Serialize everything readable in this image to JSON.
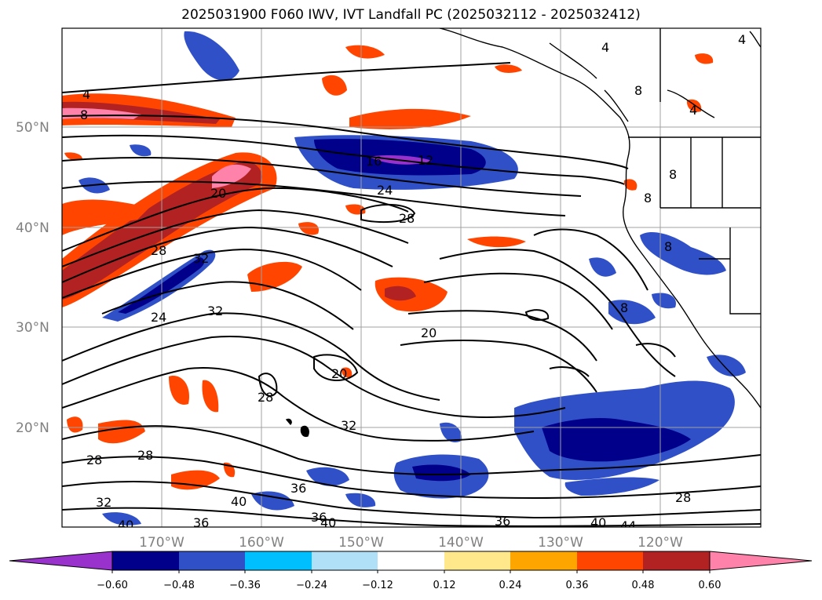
{
  "title": "2025031900 F060 IWV, IVT Landfall PC (2025032112 - 2025032412)",
  "lat_labels": [
    "50°N",
    "40°N",
    "30°N",
    "20°N"
  ],
  "lon_labels": [
    "170°W",
    "160°W",
    "150°W",
    "140°W",
    "130°W",
    "120°W"
  ],
  "contour_labels": [
    "4",
    "8",
    "16",
    "12",
    "20",
    "24",
    "28",
    "32",
    "36",
    "40",
    "44"
  ],
  "colorbar": {
    "ticks": [
      "−0.60",
      "−0.48",
      "−0.36",
      "−0.24",
      "−0.12",
      "0.12",
      "0.24",
      "0.36",
      "0.48",
      "0.60"
    ],
    "colors": [
      "#9932cc",
      "#00008b",
      "#3050c8",
      "#00bfff",
      "#b0e0f8",
      "#ffffff",
      "#ffe88c",
      "#ffa500",
      "#ff4500",
      "#b22222",
      "#ff82ab"
    ]
  },
  "palette": {
    "pos_low": "#ffe88c",
    "pos_mid": "#ffa500",
    "pos_high": "#ff4500",
    "pos_higher": "#b22222",
    "pos_max": "#ff82ab",
    "neg_low": "#b0e0f8",
    "neg_mid": "#00bfff",
    "neg_high": "#3050c8",
    "neg_higher": "#00008b",
    "neg_max": "#9932cc"
  }
}
